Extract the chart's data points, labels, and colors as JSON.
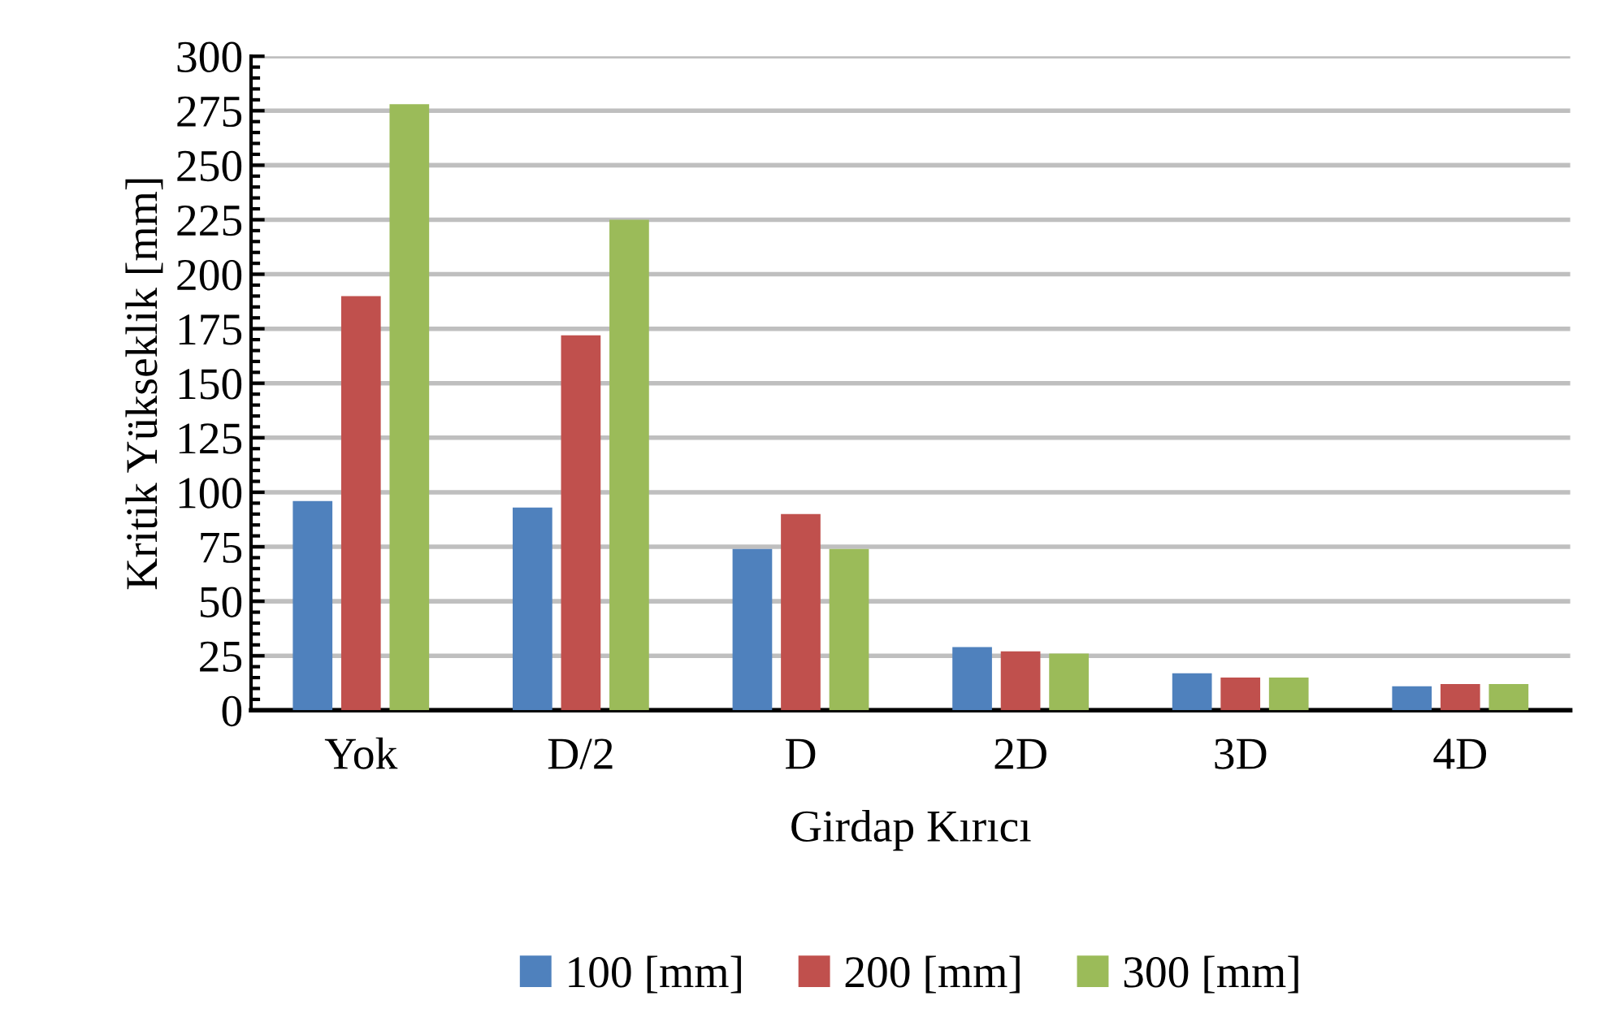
{
  "chart_data": {
    "type": "bar",
    "xlabel": "Girdap Kırıcı",
    "ylabel": "Kritik Yükseklik [mm]",
    "categories": [
      "Yok",
      "D/2",
      "D",
      "2D",
      "3D",
      "4D"
    ],
    "series": [
      {
        "name": "100 [mm]",
        "color": "#4f81bd",
        "values": [
          96,
          93,
          74,
          29,
          17,
          11
        ]
      },
      {
        "name": "200 [mm]",
        "color": "#c0504d",
        "values": [
          190,
          172,
          90,
          27,
          15,
          12
        ]
      },
      {
        "name": "300 [mm]",
        "color": "#9bbb59",
        "values": [
          278,
          225,
          74,
          26,
          15,
          12
        ]
      }
    ],
    "ylim": [
      0,
      300
    ],
    "yticks": [
      0,
      25,
      50,
      75,
      100,
      125,
      150,
      175,
      200,
      225,
      250,
      275,
      300
    ],
    "grid": "y",
    "legend": "bottom"
  }
}
